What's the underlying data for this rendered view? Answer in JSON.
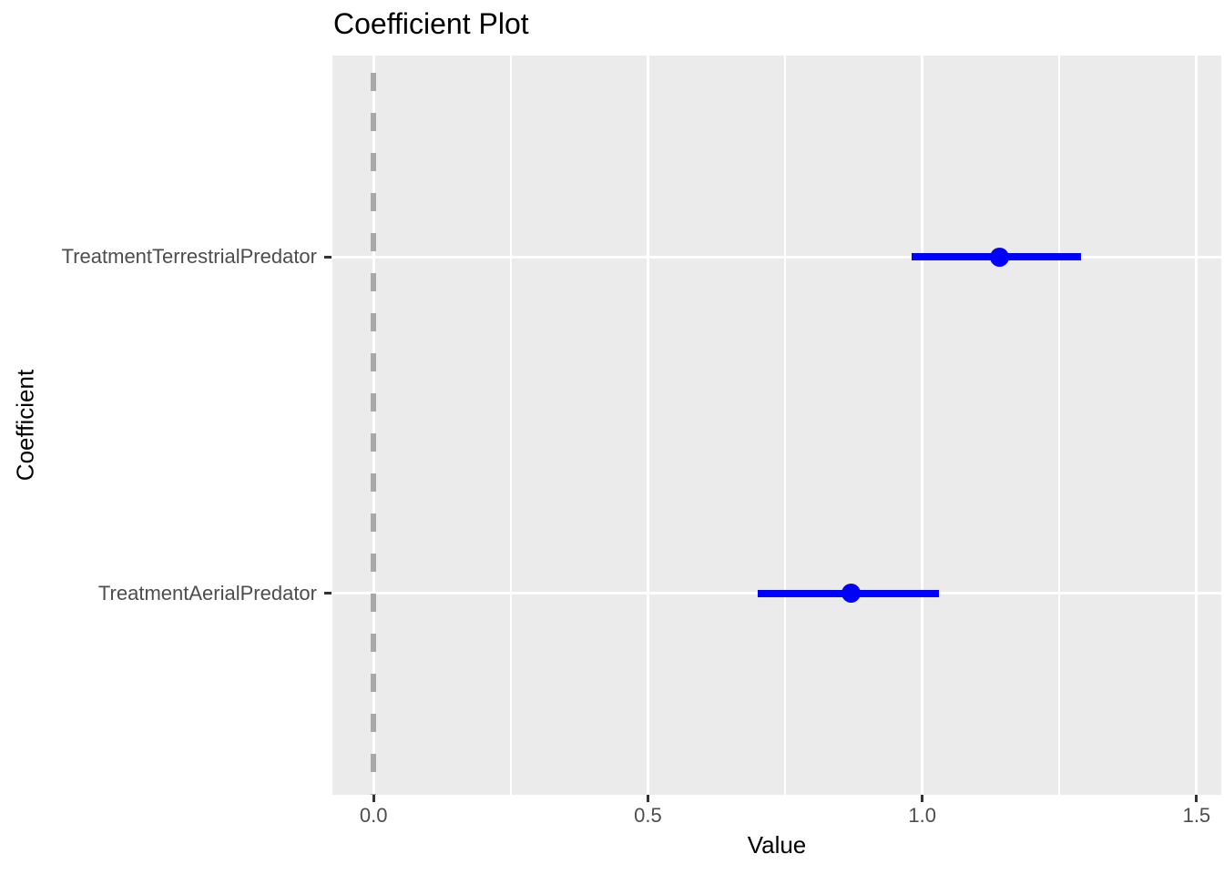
{
  "chart_data": {
    "type": "pointrange",
    "title": "Coefficient Plot",
    "xlabel": "Value",
    "ylabel": "Coefficient",
    "xlim": [
      -0.075,
      1.545
    ],
    "x_major_ticks": [
      0.0,
      0.5,
      1.0,
      1.5
    ],
    "x_tick_labels": [
      "0.0",
      "0.5",
      "1.0",
      "1.5"
    ],
    "x_minor_gridlines": [
      0.25,
      0.75,
      1.25
    ],
    "categories_top_to_bottom": [
      "TreatmentTerrestrialPredator",
      "TreatmentAerialPredator"
    ],
    "series": [
      {
        "coefficient": "TreatmentTerrestrialPredator",
        "estimate": 1.14,
        "lower": 0.98,
        "upper": 1.29
      },
      {
        "coefficient": "TreatmentAerialPredator",
        "estimate": 0.87,
        "lower": 0.7,
        "upper": 1.03
      }
    ],
    "reference_line": {
      "x": 0,
      "style": "dashed",
      "color": "#A8A8A8"
    },
    "point_color": "#0000FF",
    "panel_background": "#EBEBEB",
    "gridline_color": "#FFFFFF",
    "legend": "none",
    "grid": "on"
  }
}
